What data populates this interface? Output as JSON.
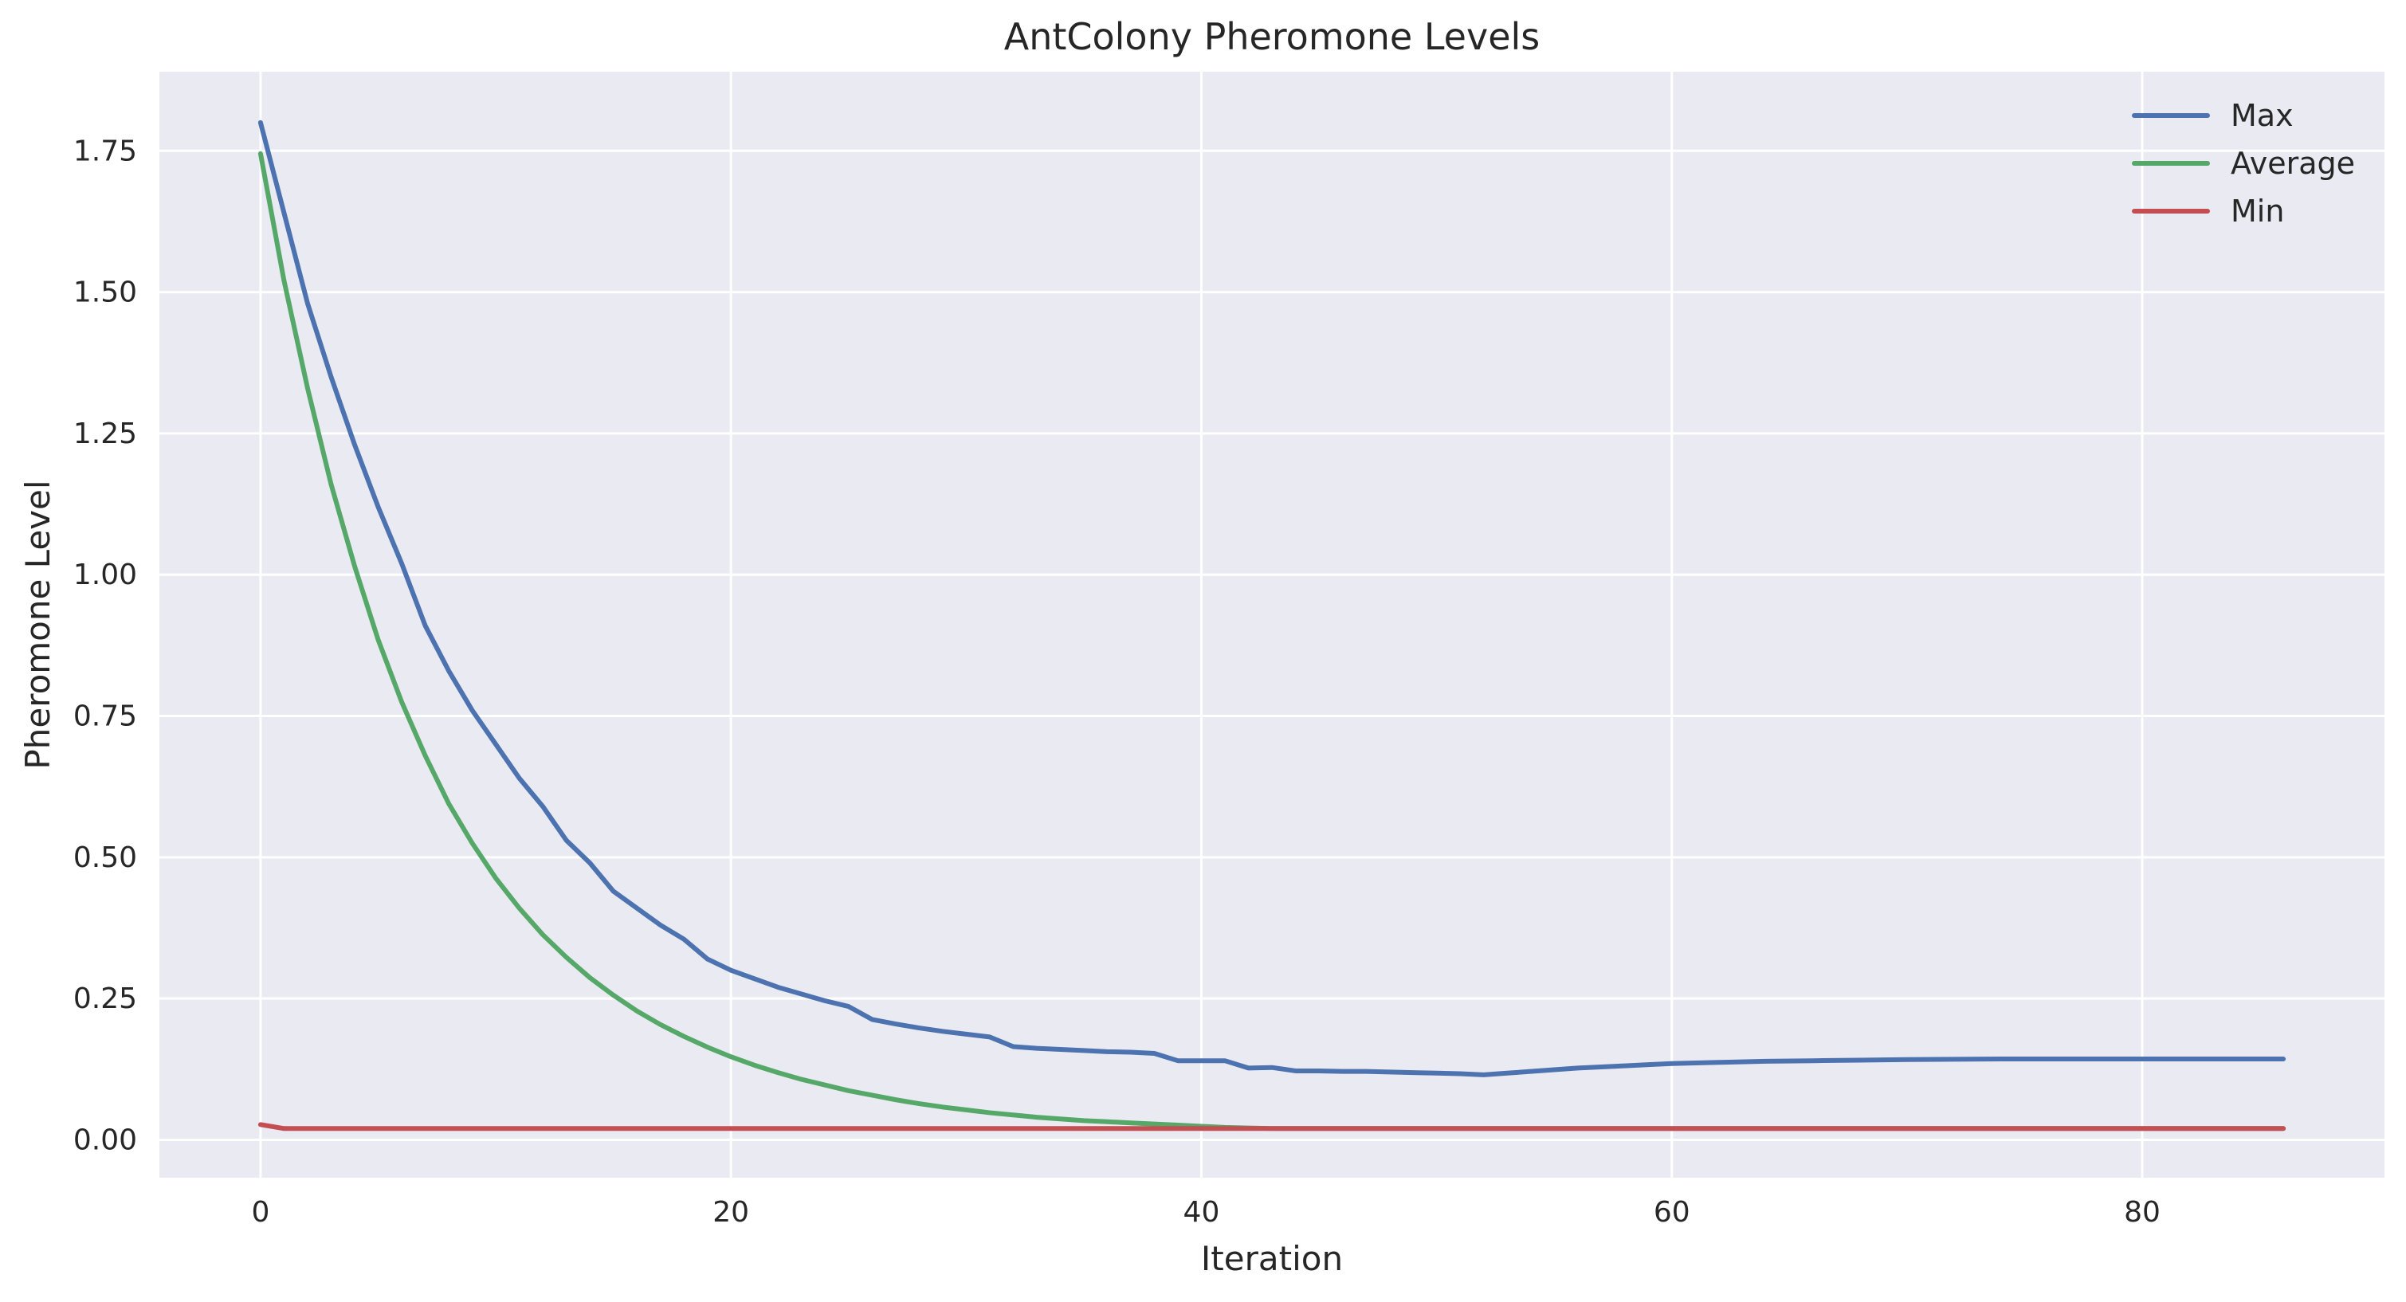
{
  "chart_data": {
    "type": "line",
    "title": "AntColony Pheromone Levels",
    "xlabel": "Iteration",
    "ylabel": "Pheromone Level",
    "xlim": [
      -4.3,
      90.3
    ],
    "ylim": [
      -0.067,
      1.89
    ],
    "xticks": [
      0,
      20,
      40,
      60,
      80
    ],
    "yticks": [
      0.0,
      0.25,
      0.5,
      0.75,
      1.0,
      1.25,
      1.5,
      1.75
    ],
    "grid": true,
    "legend_position": "top-right",
    "background": "#eaeaf2",
    "series": [
      {
        "name": "Max",
        "color": "#4c72b0",
        "points": [
          [
            0,
            1.8
          ],
          [
            1,
            1.64
          ],
          [
            2,
            1.48
          ],
          [
            3,
            1.35
          ],
          [
            4,
            1.23
          ],
          [
            5,
            1.12
          ],
          [
            6,
            1.02
          ],
          [
            7,
            0.91
          ],
          [
            8,
            0.83
          ],
          [
            9,
            0.76
          ],
          [
            10,
            0.7
          ],
          [
            11,
            0.64
          ],
          [
            12,
            0.59
          ],
          [
            13,
            0.53
          ],
          [
            14,
            0.49
          ],
          [
            15,
            0.44
          ],
          [
            16,
            0.41
          ],
          [
            17,
            0.38
          ],
          [
            18,
            0.355
          ],
          [
            19,
            0.32
          ],
          [
            20,
            0.3
          ],
          [
            21,
            0.285
          ],
          [
            22,
            0.27
          ],
          [
            23,
            0.258
          ],
          [
            24,
            0.246
          ],
          [
            25,
            0.236
          ],
          [
            26,
            0.213
          ],
          [
            27,
            0.205
          ],
          [
            28,
            0.198
          ],
          [
            29,
            0.192
          ],
          [
            30,
            0.187
          ],
          [
            31,
            0.182
          ],
          [
            32,
            0.165
          ],
          [
            33,
            0.162
          ],
          [
            34,
            0.16
          ],
          [
            35,
            0.158
          ],
          [
            36,
            0.156
          ],
          [
            37,
            0.155
          ],
          [
            38,
            0.153
          ],
          [
            39,
            0.14
          ],
          [
            40,
            0.14
          ],
          [
            41,
            0.14
          ],
          [
            42,
            0.127
          ],
          [
            43,
            0.128
          ],
          [
            44,
            0.122
          ],
          [
            45,
            0.122
          ],
          [
            46,
            0.121
          ],
          [
            47,
            0.121
          ],
          [
            48,
            0.12
          ],
          [
            49,
            0.119
          ],
          [
            50,
            0.118
          ],
          [
            51,
            0.117
          ],
          [
            52,
            0.115
          ],
          [
            53,
            0.118
          ],
          [
            54,
            0.121
          ],
          [
            55,
            0.124
          ],
          [
            56,
            0.127
          ],
          [
            57,
            0.129
          ],
          [
            58,
            0.131
          ],
          [
            59,
            0.133
          ],
          [
            60,
            0.135
          ],
          [
            62,
            0.137
          ],
          [
            64,
            0.139
          ],
          [
            66,
            0.14
          ],
          [
            68,
            0.141
          ],
          [
            70,
            0.142
          ],
          [
            74,
            0.143
          ],
          [
            78,
            0.143
          ],
          [
            82,
            0.143
          ],
          [
            86,
            0.143
          ]
        ]
      },
      {
        "name": "Average",
        "color": "#55a868",
        "points": [
          [
            0,
            1.745
          ],
          [
            1,
            1.52
          ],
          [
            2,
            1.33
          ],
          [
            3,
            1.16
          ],
          [
            4,
            1.015
          ],
          [
            5,
            0.885
          ],
          [
            6,
            0.775
          ],
          [
            7,
            0.68
          ],
          [
            8,
            0.595
          ],
          [
            9,
            0.525
          ],
          [
            10,
            0.463
          ],
          [
            11,
            0.41
          ],
          [
            12,
            0.363
          ],
          [
            13,
            0.323
          ],
          [
            14,
            0.287
          ],
          [
            15,
            0.256
          ],
          [
            16,
            0.228
          ],
          [
            17,
            0.204
          ],
          [
            18,
            0.183
          ],
          [
            19,
            0.164
          ],
          [
            20,
            0.147
          ],
          [
            21,
            0.132
          ],
          [
            22,
            0.119
          ],
          [
            23,
            0.107
          ],
          [
            24,
            0.097
          ],
          [
            25,
            0.087
          ],
          [
            26,
            0.079
          ],
          [
            27,
            0.071
          ],
          [
            28,
            0.064
          ],
          [
            29,
            0.058
          ],
          [
            30,
            0.053
          ],
          [
            31,
            0.048
          ],
          [
            32,
            0.044
          ],
          [
            33,
            0.04
          ],
          [
            34,
            0.037
          ],
          [
            35,
            0.034
          ],
          [
            36,
            0.032
          ],
          [
            37,
            0.03
          ],
          [
            38,
            0.028
          ],
          [
            39,
            0.026
          ],
          [
            40,
            0.024
          ],
          [
            41,
            0.022
          ],
          [
            42,
            0.021
          ],
          [
            43,
            0.02
          ],
          [
            44,
            0.02
          ],
          [
            50,
            0.02
          ],
          [
            60,
            0.02
          ],
          [
            70,
            0.02
          ],
          [
            80,
            0.02
          ],
          [
            86,
            0.02
          ]
        ]
      },
      {
        "name": "Min",
        "color": "#c44e52",
        "points": [
          [
            0,
            0.027
          ],
          [
            1,
            0.02
          ],
          [
            2,
            0.02
          ],
          [
            10,
            0.02
          ],
          [
            20,
            0.02
          ],
          [
            30,
            0.02
          ],
          [
            40,
            0.02
          ],
          [
            50,
            0.02
          ],
          [
            60,
            0.02
          ],
          [
            70,
            0.02
          ],
          [
            80,
            0.02
          ],
          [
            86,
            0.02
          ]
        ]
      }
    ]
  }
}
